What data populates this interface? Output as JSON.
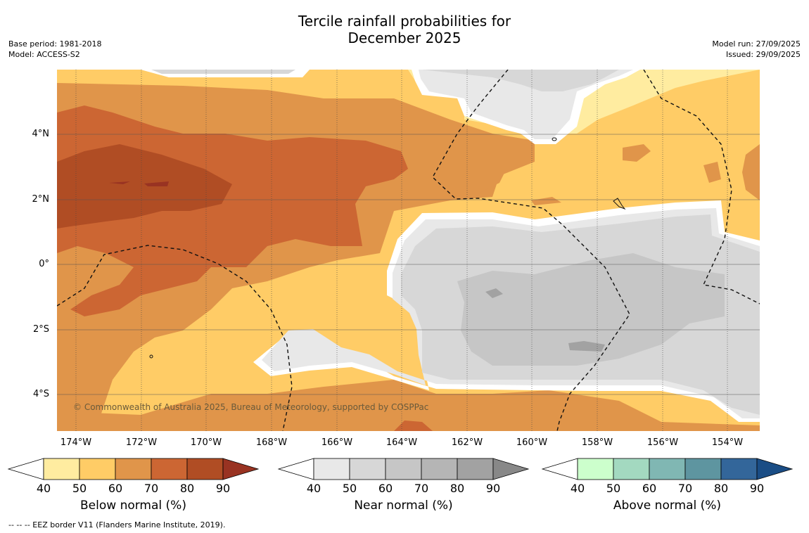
{
  "title_line1": "Tercile rainfall probabilities for",
  "title_line2": "December 2025",
  "meta_left": {
    "base_period": "Base period: 1981-2018",
    "model": "Model: ACCESS-S2"
  },
  "meta_right": {
    "model_run": "Model run: 27/09/2025",
    "issued": "Issued: 29/09/2025"
  },
  "copyright": "© Commonwealth of Australia 2025, Bureau of Meteorology, supported by COSPPac",
  "footnote": "--  --  -- EEZ border V11 (Flanders Marine Institute, 2019).",
  "lat_labels": [
    "4°N",
    "2°N",
    "0°",
    "2°S",
    "4°S"
  ],
  "lon_labels": [
    "174°W",
    "172°W",
    "170°W",
    "168°W",
    "166°W",
    "164°W",
    "162°W",
    "160°W",
    "158°W",
    "156°W",
    "154°W"
  ],
  "colorbars": [
    {
      "name": "Below normal (%)",
      "ticks": [
        "40",
        "50",
        "60",
        "70",
        "80",
        "90"
      ],
      "colors": [
        "#ffffff",
        "#ffeca0",
        "#ffcc66",
        "#e0954a",
        "#cc6633",
        "#b04d24",
        "#993322"
      ]
    },
    {
      "name": "Near normal (%)",
      "ticks": [
        "40",
        "50",
        "60",
        "70",
        "80",
        "90"
      ],
      "colors": [
        "#ffffff",
        "#e8e8e8",
        "#d7d7d7",
        "#c6c6c6",
        "#b5b5b5",
        "#a2a2a2",
        "#888888"
      ]
    },
    {
      "name": "Above normal (%)",
      "ticks": [
        "40",
        "50",
        "60",
        "70",
        "80",
        "90"
      ],
      "colors": [
        "#ffffff",
        "#ccffcc",
        "#a3d9c0",
        "#80b7b3",
        "#5e95a0",
        "#33669a",
        "#1a4d85"
      ]
    }
  ]
}
